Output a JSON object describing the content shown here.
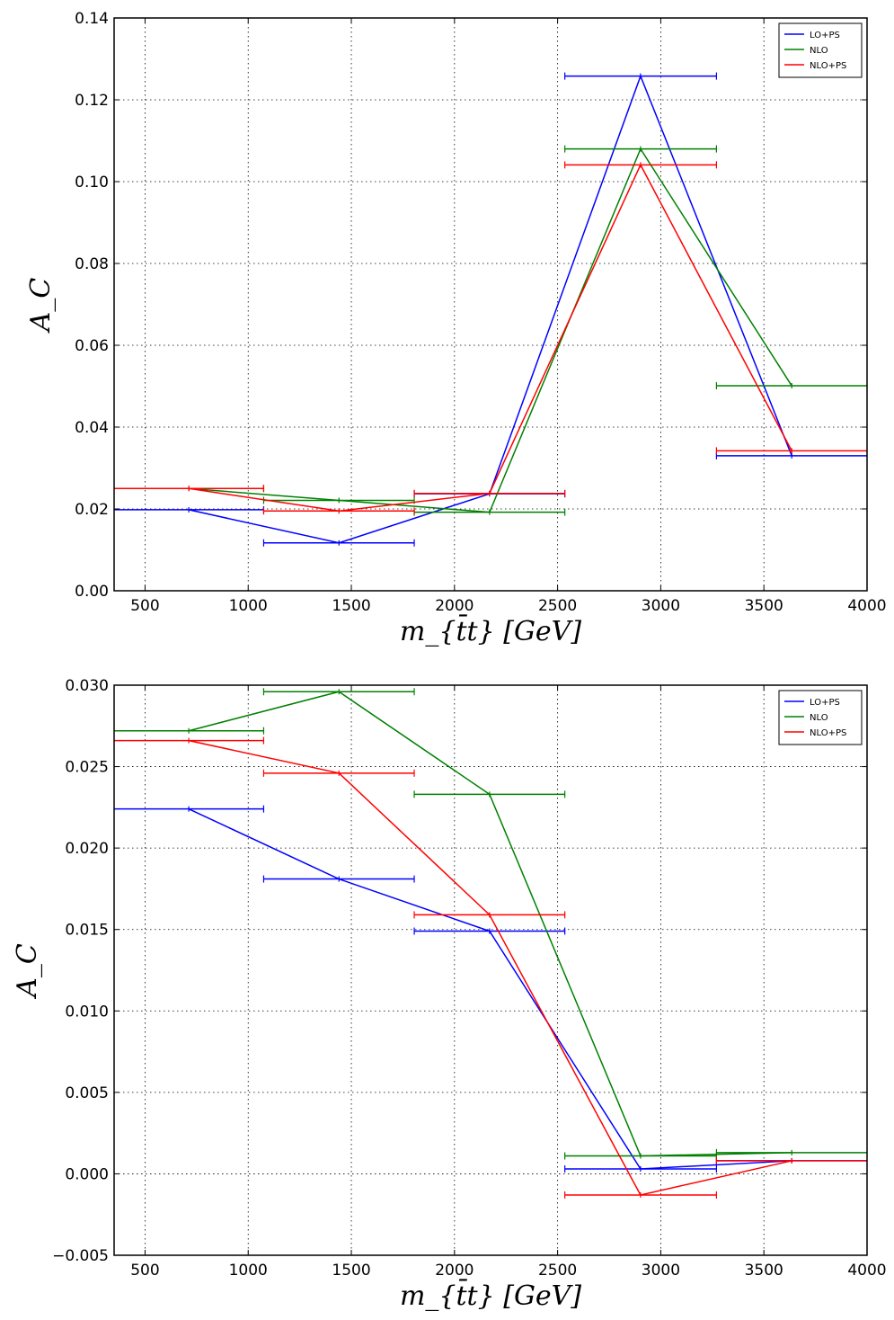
{
  "chart_data": [
    {
      "type": "line",
      "xlabel": "m_{t̄t} [GeV]",
      "ylabel": "A_C",
      "xlim": [
        350,
        4000
      ],
      "ylim": [
        0,
        0.14
      ],
      "xticks": [
        500,
        1000,
        1500,
        2000,
        2500,
        3000,
        3500,
        4000
      ],
      "xtick_labels": [
        "500",
        "1000",
        "1500",
        "2000",
        "2500",
        "3000",
        "3500",
        "4000"
      ],
      "yticks": [
        0,
        0.02,
        0.04,
        0.06,
        0.08,
        0.1,
        0.12,
        0.14
      ],
      "ytick_labels": [
        "0.00",
        "0.02",
        "0.04",
        "0.06",
        "0.08",
        "0.10",
        "0.12",
        "0.14"
      ],
      "grid": true,
      "legend": "top-right",
      "bin_edges": [
        350,
        1075,
        1805,
        2535,
        3270,
        4000
      ],
      "x": [
        712,
        1440,
        2170,
        2902,
        3635
      ],
      "series": [
        {
          "name": "LO+PS",
          "color": "#0000ff",
          "values": [
            0.0198,
            0.0117,
            0.0237,
            0.1258,
            0.033
          ]
        },
        {
          "name": "NLO",
          "color": "#008000",
          "values": [
            0.025,
            0.0221,
            0.0192,
            0.108,
            0.0501
          ]
        },
        {
          "name": "NLO+PS",
          "color": "#ff0000",
          "values": [
            0.025,
            0.0195,
            0.0238,
            0.1041,
            0.0342
          ]
        }
      ]
    },
    {
      "type": "line",
      "xlabel": "m_{t̄t} [GeV]",
      "ylabel": "A_C",
      "xlim": [
        350,
        4000
      ],
      "ylim": [
        -0.005,
        0.03
      ],
      "xticks": [
        500,
        1000,
        1500,
        2000,
        2500,
        3000,
        3500,
        4000
      ],
      "xtick_labels": [
        "500",
        "1000",
        "1500",
        "2000",
        "2500",
        "3000",
        "3500",
        "4000"
      ],
      "yticks": [
        -0.005,
        0,
        0.005,
        0.01,
        0.015,
        0.02,
        0.025,
        0.03
      ],
      "ytick_labels": [
        "−0.005",
        "0.000",
        "0.005",
        "0.010",
        "0.015",
        "0.020",
        "0.025",
        "0.030"
      ],
      "grid": true,
      "legend": "top-right",
      "bin_edges": [
        350,
        1075,
        1805,
        2535,
        3270,
        4000
      ],
      "x": [
        712,
        1440,
        2170,
        2902,
        3635
      ],
      "series": [
        {
          "name": "LO+PS",
          "color": "#0000ff",
          "values": [
            0.0224,
            0.0181,
            0.0149,
            0.0003,
            0.0008
          ]
        },
        {
          "name": "NLO",
          "color": "#008000",
          "values": [
            0.0272,
            0.0296,
            0.0233,
            0.0011,
            0.0013
          ]
        },
        {
          "name": "NLO+PS",
          "color": "#ff0000",
          "values": [
            0.0266,
            0.0246,
            0.0159,
            -0.0013,
            0.0008
          ]
        }
      ]
    }
  ]
}
